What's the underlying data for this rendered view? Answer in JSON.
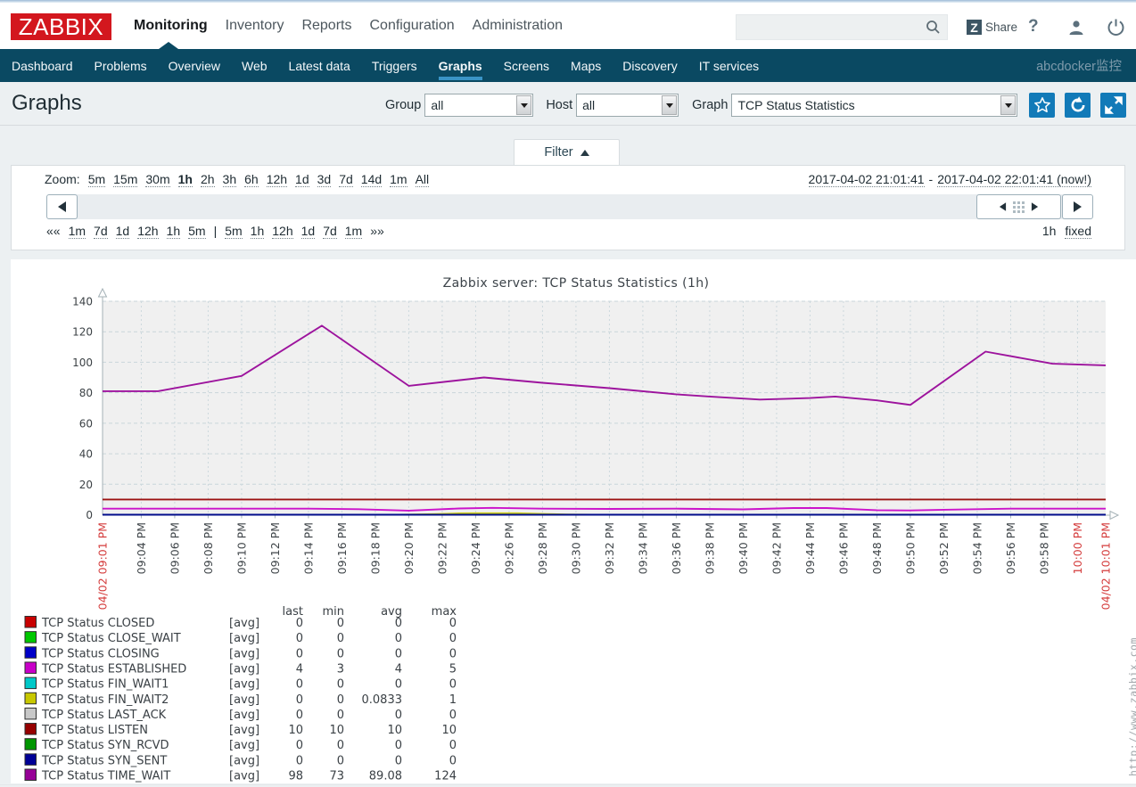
{
  "topbar": {
    "logo": "ZABBIX",
    "nav": [
      {
        "label": "Monitoring",
        "selected": true
      },
      {
        "label": "Inventory",
        "selected": false
      },
      {
        "label": "Reports",
        "selected": false
      },
      {
        "label": "Configuration",
        "selected": false
      },
      {
        "label": "Administration",
        "selected": false
      }
    ],
    "search_value": "",
    "share_z": "Z",
    "share_label": "Share",
    "help_label": "?"
  },
  "subnav": {
    "items": [
      {
        "label": "Dashboard",
        "selected": false
      },
      {
        "label": "Problems",
        "selected": false
      },
      {
        "label": "Overview",
        "selected": false
      },
      {
        "label": "Web",
        "selected": false
      },
      {
        "label": "Latest data",
        "selected": false
      },
      {
        "label": "Triggers",
        "selected": false
      },
      {
        "label": "Graphs",
        "selected": true
      },
      {
        "label": "Screens",
        "selected": false
      },
      {
        "label": "Maps",
        "selected": false
      },
      {
        "label": "Discovery",
        "selected": false
      },
      {
        "label": "IT services",
        "selected": false
      }
    ],
    "right_label": "abcdocker监控"
  },
  "header": {
    "title": "Graphs",
    "group_label": "Group",
    "group_value": "all",
    "host_label": "Host",
    "host_value": "all",
    "graph_label": "Graph",
    "graph_value": "TCP Status Statistics"
  },
  "filter": {
    "tab_label": "Filter",
    "zoom_label": "Zoom:",
    "zoom_links": [
      {
        "label": "5m",
        "selected": false
      },
      {
        "label": "15m",
        "selected": false
      },
      {
        "label": "30m",
        "selected": false
      },
      {
        "label": "1h",
        "selected": true
      },
      {
        "label": "2h",
        "selected": false
      },
      {
        "label": "3h",
        "selected": false
      },
      {
        "label": "6h",
        "selected": false
      },
      {
        "label": "12h",
        "selected": false
      },
      {
        "label": "1d",
        "selected": false
      },
      {
        "label": "3d",
        "selected": false
      },
      {
        "label": "7d",
        "selected": false
      },
      {
        "label": "14d",
        "selected": false
      },
      {
        "label": "1m",
        "selected": false
      },
      {
        "label": "All",
        "selected": false
      }
    ],
    "date_from": "2017-04-02 21:01:41",
    "date_separator": "-",
    "date_to": "2017-04-02 22:01:41 (now!)",
    "quick_prev": "««",
    "quick_left": [
      "1m",
      "7d",
      "1d",
      "12h",
      "1h",
      "5m"
    ],
    "quick_separator": "|",
    "quick_right": [
      "5m",
      "1h",
      "12h",
      "1d",
      "7d",
      "1m"
    ],
    "quick_next": "»»",
    "period_label": "1h",
    "fixed_label": "fixed"
  },
  "chart_data": {
    "type": "line",
    "title": "Zabbix server: TCP Status Statistics (1h)",
    "time_start": "21:01:41",
    "time_end": "22:01:41",
    "x_range_minutes": [
      1.6833,
      61.6833
    ],
    "ylim": [
      0,
      140
    ],
    "y_ticks": [
      0,
      20,
      40,
      60,
      80,
      100,
      120,
      140
    ],
    "grid": true,
    "legend_position": "bottom",
    "legend_headers": [
      "last",
      "min",
      "avg",
      "max"
    ],
    "x_labels": [
      {
        "t": 1.6833,
        "text": "04/02 09:01 PM",
        "red": true,
        "gridline": false
      },
      {
        "t": 4,
        "text": "09:04 PM",
        "red": false,
        "gridline": true
      },
      {
        "t": 6,
        "text": "09:06 PM",
        "red": false,
        "gridline": true
      },
      {
        "t": 8,
        "text": "09:08 PM",
        "red": false,
        "gridline": true
      },
      {
        "t": 10,
        "text": "09:10 PM",
        "red": false,
        "gridline": true
      },
      {
        "t": 12,
        "text": "09:12 PM",
        "red": false,
        "gridline": true
      },
      {
        "t": 14,
        "text": "09:14 PM",
        "red": false,
        "gridline": true
      },
      {
        "t": 16,
        "text": "09:16 PM",
        "red": false,
        "gridline": true
      },
      {
        "t": 18,
        "text": "09:18 PM",
        "red": false,
        "gridline": true
      },
      {
        "t": 20,
        "text": "09:20 PM",
        "red": false,
        "gridline": true
      },
      {
        "t": 22,
        "text": "09:22 PM",
        "red": false,
        "gridline": true
      },
      {
        "t": 24,
        "text": "09:24 PM",
        "red": false,
        "gridline": true
      },
      {
        "t": 26,
        "text": "09:26 PM",
        "red": false,
        "gridline": true
      },
      {
        "t": 28,
        "text": "09:28 PM",
        "red": false,
        "gridline": true
      },
      {
        "t": 30,
        "text": "09:30 PM",
        "red": false,
        "gridline": true
      },
      {
        "t": 32,
        "text": "09:32 PM",
        "red": false,
        "gridline": true
      },
      {
        "t": 34,
        "text": "09:34 PM",
        "red": false,
        "gridline": true
      },
      {
        "t": 36,
        "text": "09:36 PM",
        "red": false,
        "gridline": true
      },
      {
        "t": 38,
        "text": "09:38 PM",
        "red": false,
        "gridline": true
      },
      {
        "t": 40,
        "text": "09:40 PM",
        "red": false,
        "gridline": true
      },
      {
        "t": 42,
        "text": "09:42 PM",
        "red": false,
        "gridline": true
      },
      {
        "t": 44,
        "text": "09:44 PM",
        "red": false,
        "gridline": true
      },
      {
        "t": 46,
        "text": "09:46 PM",
        "red": false,
        "gridline": true
      },
      {
        "t": 48,
        "text": "09:48 PM",
        "red": false,
        "gridline": true
      },
      {
        "t": 50,
        "text": "09:50 PM",
        "red": false,
        "gridline": true
      },
      {
        "t": 52,
        "text": "09:52 PM",
        "red": false,
        "gridline": true
      },
      {
        "t": 54,
        "text": "09:54 PM",
        "red": false,
        "gridline": true
      },
      {
        "t": 56,
        "text": "09:56 PM",
        "red": false,
        "gridline": true
      },
      {
        "t": 58,
        "text": "09:58 PM",
        "red": false,
        "gridline": true
      },
      {
        "t": 60,
        "text": "10:00 PM",
        "red": true,
        "gridline": true
      },
      {
        "t": 61.6833,
        "text": "04/02 10:01 PM",
        "red": true,
        "gridline": false
      }
    ],
    "series": [
      {
        "name": "TCP Status CLOSED",
        "color": "#C80000",
        "mode": "[avg]",
        "last": "0",
        "min": "0",
        "avg": "0",
        "max": "0",
        "points": [
          [
            1.6833,
            0
          ],
          [
            61.6833,
            0
          ]
        ]
      },
      {
        "name": "TCP Status CLOSE_WAIT",
        "color": "#00C800",
        "mode": "[avg]",
        "last": "0",
        "min": "0",
        "avg": "0",
        "max": "0",
        "points": [
          [
            1.6833,
            0
          ],
          [
            61.6833,
            0
          ]
        ]
      },
      {
        "name": "TCP Status CLOSING",
        "color": "#0000C8",
        "mode": "[avg]",
        "last": "0",
        "min": "0",
        "avg": "0",
        "max": "0",
        "points": [
          [
            1.6833,
            0
          ],
          [
            61.6833,
            0
          ]
        ]
      },
      {
        "name": "TCP Status ESTABLISHED",
        "color": "#C800C8",
        "mode": "[avg]",
        "last": "4",
        "min": "3",
        "avg": "4",
        "max": "5",
        "points": [
          [
            1.6833,
            4
          ],
          [
            8,
            4
          ],
          [
            14,
            4
          ],
          [
            17,
            3.6
          ],
          [
            20,
            2.7
          ],
          [
            23,
            4.1
          ],
          [
            25,
            4.5
          ],
          [
            28,
            4
          ],
          [
            32,
            3.8
          ],
          [
            36,
            4
          ],
          [
            40,
            3.5
          ],
          [
            43,
            4.4
          ],
          [
            45,
            4.4
          ],
          [
            48,
            3
          ],
          [
            50,
            2.8
          ],
          [
            52,
            3.3
          ],
          [
            56,
            4
          ],
          [
            61.6833,
            4
          ]
        ]
      },
      {
        "name": "TCP Status FIN_WAIT1",
        "color": "#00C8C8",
        "mode": "[avg]",
        "last": "0",
        "min": "0",
        "avg": "0",
        "max": "0",
        "points": [
          [
            1.6833,
            0
          ],
          [
            61.6833,
            0
          ]
        ]
      },
      {
        "name": "TCP Status FIN_WAIT2",
        "color": "#C8C800",
        "mode": "[avg]",
        "last": "0",
        "min": "0",
        "avg": "0.0833",
        "max": "1",
        "points": [
          [
            1.6833,
            0
          ],
          [
            19.5,
            0
          ],
          [
            21.5,
            0.4
          ],
          [
            23,
            0.9
          ],
          [
            24,
            1
          ],
          [
            26.5,
            1
          ],
          [
            28,
            0.5
          ],
          [
            29.5,
            0.15
          ],
          [
            31,
            0
          ],
          [
            61.6833,
            0
          ]
        ]
      },
      {
        "name": "TCP Status LAST_ACK",
        "color": "#C8C8C8",
        "mode": "[avg]",
        "last": "0",
        "min": "0",
        "avg": "0",
        "max": "0",
        "points": [
          [
            1.6833,
            0
          ],
          [
            61.6833,
            0
          ]
        ]
      },
      {
        "name": "TCP Status LISTEN",
        "color": "#960000",
        "mode": "[avg]",
        "last": "10",
        "min": "10",
        "avg": "10",
        "max": "10",
        "points": [
          [
            1.6833,
            10
          ],
          [
            61.6833,
            10
          ]
        ]
      },
      {
        "name": "TCP Status SYN_RCVD",
        "color": "#009600",
        "mode": "[avg]",
        "last": "0",
        "min": "0",
        "avg": "0",
        "max": "0",
        "points": [
          [
            1.6833,
            0
          ],
          [
            61.6833,
            0
          ]
        ]
      },
      {
        "name": "TCP Status SYN_SENT",
        "color": "#000096",
        "mode": "[avg]",
        "last": "0",
        "min": "0",
        "avg": "0",
        "max": "0",
        "points": [
          [
            1.6833,
            0
          ],
          [
            61.6833,
            0
          ]
        ]
      },
      {
        "name": "TCP Status TIME_WAIT",
        "color": "#960096",
        "mode": "[avg]",
        "last": "98",
        "min": "73",
        "avg": "89.08",
        "max": "124",
        "points": [
          [
            1.6833,
            81
          ],
          [
            5,
            81
          ],
          [
            10,
            91
          ],
          [
            14.8,
            124
          ],
          [
            20,
            84.5
          ],
          [
            24.5,
            90
          ],
          [
            28,
            86.5
          ],
          [
            32,
            83
          ],
          [
            36,
            79
          ],
          [
            38,
            77.5
          ],
          [
            41,
            75.5
          ],
          [
            44,
            76.5
          ],
          [
            45.5,
            77.5
          ],
          [
            48,
            75
          ],
          [
            50,
            72
          ],
          [
            54.5,
            107
          ],
          [
            58.5,
            99
          ],
          [
            61.6833,
            98
          ]
        ]
      }
    ],
    "watermark": "http://www.zabbix.com"
  }
}
